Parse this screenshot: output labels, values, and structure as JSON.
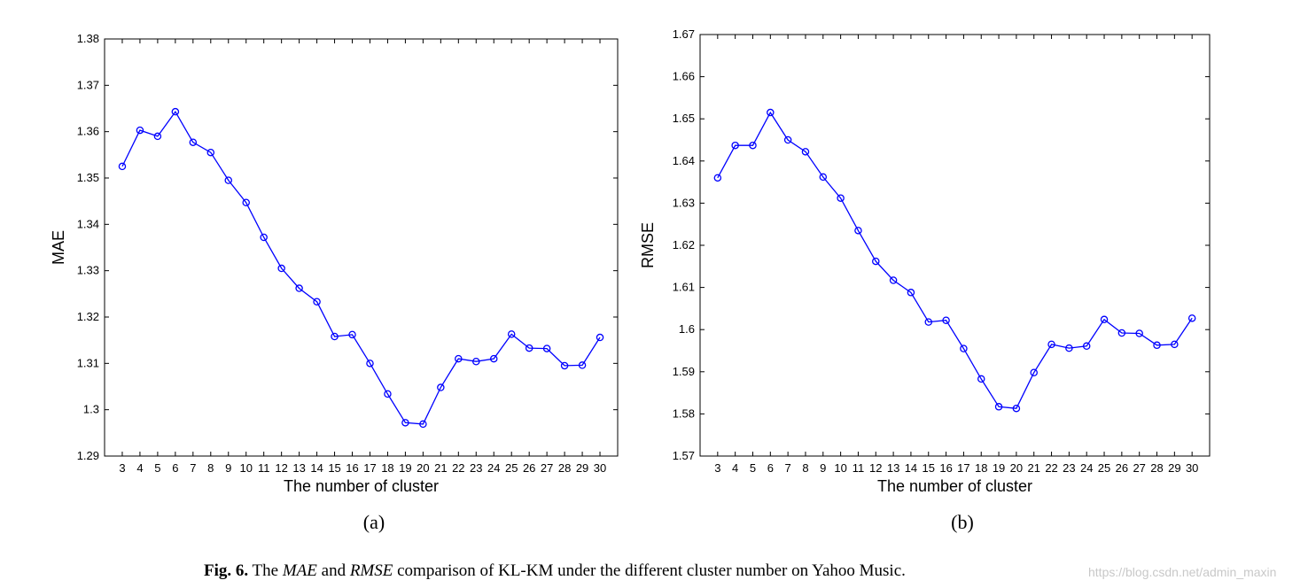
{
  "chart_data": [
    {
      "type": "line",
      "panel": "(a)",
      "xlabel": "The number of cluster",
      "ylabel": "MAE",
      "x": [
        3,
        4,
        5,
        6,
        7,
        8,
        9,
        10,
        11,
        12,
        13,
        14,
        15,
        16,
        17,
        18,
        19,
        20,
        21,
        22,
        23,
        24,
        25,
        26,
        27,
        28,
        29,
        30
      ],
      "values": [
        1.3525,
        1.3603,
        1.359,
        1.3643,
        1.3577,
        1.3555,
        1.3495,
        1.3447,
        1.3372,
        1.3305,
        1.3262,
        1.3233,
        1.3158,
        1.3162,
        1.31,
        1.3034,
        1.2972,
        1.2969,
        1.3048,
        1.311,
        1.3104,
        1.311,
        1.3163,
        1.3133,
        1.3132,
        1.3095,
        1.3096,
        1.3156
      ],
      "ylim": [
        1.29,
        1.38
      ],
      "yticks": [
        "1.29",
        "1.3",
        "1.31",
        "1.32",
        "1.33",
        "1.34",
        "1.35",
        "1.36",
        "1.37",
        "1.38"
      ],
      "color": "#0000ff",
      "grid": false
    },
    {
      "type": "line",
      "panel": "(b)",
      "xlabel": "The number of cluster",
      "ylabel": "RMSE",
      "x": [
        3,
        4,
        5,
        6,
        7,
        8,
        9,
        10,
        11,
        12,
        13,
        14,
        15,
        16,
        17,
        18,
        19,
        20,
        21,
        22,
        23,
        24,
        25,
        26,
        27,
        28,
        29,
        30
      ],
      "values": [
        1.636,
        1.6437,
        1.6437,
        1.6515,
        1.645,
        1.6422,
        1.6362,
        1.6312,
        1.6235,
        1.6162,
        1.6117,
        1.6088,
        1.6018,
        1.6022,
        1.5955,
        1.5883,
        1.5817,
        1.5813,
        1.5898,
        1.5965,
        1.5956,
        1.5961,
        1.6024,
        1.5992,
        1.5991,
        1.5963,
        1.5965,
        1.6027
      ],
      "ylim": [
        1.57,
        1.67
      ],
      "yticks": [
        "1.57",
        "1.58",
        "1.59",
        "1.6",
        "1.61",
        "1.62",
        "1.63",
        "1.64",
        "1.65",
        "1.66",
        "1.67"
      ],
      "color": "#0000ff",
      "grid": false
    }
  ],
  "caption": {
    "fig_label": "Fig. 6.",
    "text_1": " The ",
    "mae": "MAE",
    "text_2": " and ",
    "rmse": "RMSE",
    "text_3": " comparison of KL-KM under the different cluster number on Yahoo Music."
  },
  "watermark": "https://blog.csdn.net/admin_maxin"
}
